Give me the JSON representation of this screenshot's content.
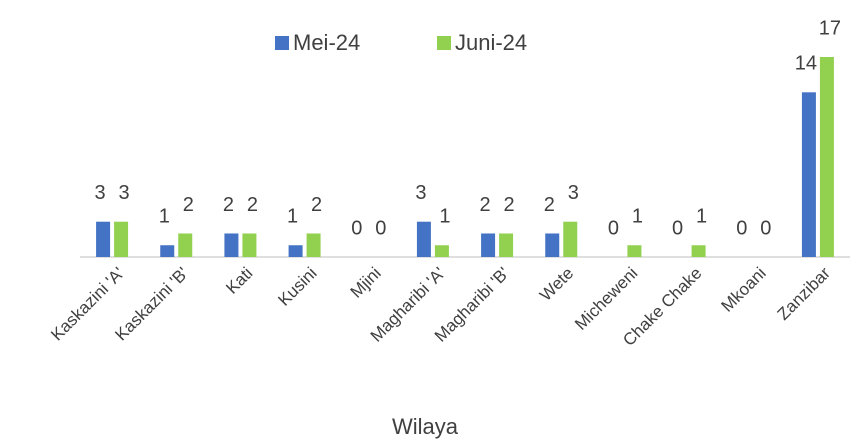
{
  "chart_data": {
    "type": "bar",
    "categories": [
      "Kaskazini 'A'",
      "Kaskazini 'B'",
      "Kati",
      "Kusini",
      "Mjini",
      "Magharibi 'A'",
      "Magharibi 'B'",
      "Wete",
      "Micheweni",
      "Chake Chake",
      "Mkoani",
      "Zanzibar"
    ],
    "series": [
      {
        "name": "Mei-24",
        "color": "#4472c4",
        "values": [
          3,
          1,
          2,
          1,
          0,
          3,
          2,
          2,
          0,
          0,
          0,
          14
        ]
      },
      {
        "name": "Juni-24",
        "color": "#92d050",
        "values": [
          3,
          2,
          2,
          2,
          0,
          1,
          2,
          3,
          1,
          1,
          0,
          17
        ]
      }
    ],
    "x_label": "Wilaya",
    "legend": "top"
  }
}
